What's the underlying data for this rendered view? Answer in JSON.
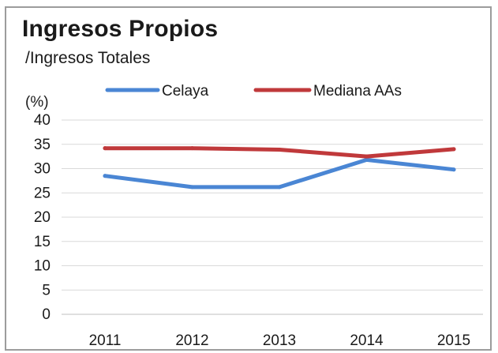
{
  "chart_data": {
    "type": "line",
    "title": "Ingresos Propios",
    "subtitle": "/Ingresos Totales",
    "ylabel": "(%)",
    "xlabel": "",
    "categories": [
      "2011",
      "2012",
      "2013",
      "2014",
      "2015"
    ],
    "yticks": [
      "0",
      "5",
      "10",
      "15",
      "20",
      "25",
      "30",
      "35",
      "40"
    ],
    "ylim": [
      0,
      40
    ],
    "grid": true,
    "legend_position": "top",
    "series": [
      {
        "name": "Celaya",
        "color": "#4a86d4",
        "values": [
          28.5,
          26.2,
          26.2,
          31.8,
          29.8
        ]
      },
      {
        "name": "Mediana AAs",
        "color": "#c0393b",
        "values": [
          34.2,
          34.2,
          33.9,
          32.5,
          34.0
        ]
      }
    ]
  }
}
